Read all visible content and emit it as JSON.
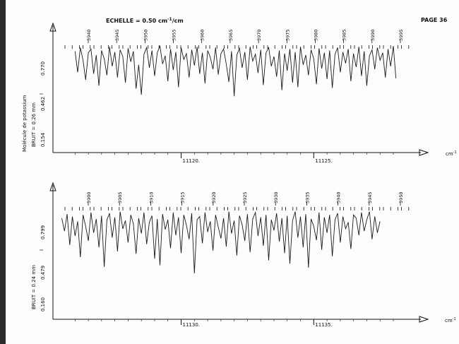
{
  "page_label": "PAGE 36",
  "scale_label": "ECHELLE = 0.50 cm",
  "scale_sup": "-1",
  "scale_unit": "/cm",
  "molecule_label": "Molécule de potassium",
  "intensity_symbol": "I",
  "unit_label_top": "cm",
  "unit_sup_top": "-1",
  "unit_label_bottom": "cm",
  "unit_sup_bottom": "-1",
  "chart_data": [
    {
      "type": "line",
      "title": "",
      "noise_label": "BRUIT = 0.26 mm",
      "y_ticks": [
        "0.770",
        "0.462",
        "0.154"
      ],
      "x_ticks": [
        "11120.",
        "11125."
      ],
      "line_numbers": [
        "3940",
        "3945",
        "3950",
        "3955",
        "3960",
        "3965",
        "3970",
        "3975",
        "3980",
        "3985",
        "3990",
        "3995"
      ],
      "xlim": [
        11115.3,
        11128.4
      ],
      "ylim": [
        0,
        1
      ],
      "series": [
        {
          "x": [
            11116.0,
            11116.1,
            11116.2,
            11116.3,
            11116.4,
            11116.5,
            11116.6,
            11116.7,
            11116.8,
            11116.9,
            11117.0,
            11117.1,
            11117.2,
            11117.3,
            11117.4,
            11117.5,
            11117.6,
            11117.7,
            11117.8,
            11117.9,
            11118.0,
            11118.1,
            11118.2,
            11118.3,
            11118.4,
            11118.5,
            11118.6,
            11118.7,
            11118.8,
            11118.9,
            11119.0,
            11119.1,
            11119.2,
            11119.3,
            11119.4,
            11119.5,
            11119.6,
            11119.7,
            11119.8,
            11119.9,
            11120.0,
            11120.1,
            11120.2,
            11120.3,
            11120.4,
            11120.5,
            11120.6,
            11120.7,
            11120.8,
            11120.9,
            11121.0,
            11121.1,
            11121.2,
            11121.3,
            11121.4,
            11121.5,
            11121.6,
            11121.7,
            11121.8,
            11121.9,
            11122.0,
            11122.1,
            11122.2,
            11122.3,
            11122.4,
            11122.5,
            11122.6,
            11122.7,
            11122.8,
            11122.9,
            11123.0,
            11123.1,
            11123.2,
            11123.3,
            11123.4,
            11123.5,
            11123.6,
            11123.7,
            11123.8,
            11123.9,
            11124.0,
            11124.1,
            11124.2,
            11124.3,
            11124.4,
            11124.5,
            11124.6,
            11124.7,
            11124.8,
            11124.9,
            11125.0,
            11125.1,
            11125.2,
            11125.3,
            11125.4,
            11125.5,
            11125.6,
            11125.7,
            11125.8,
            11125.9,
            11126.0,
            11126.1,
            11126.2,
            11126.3,
            11126.4,
            11126.5,
            11126.6,
            11126.7,
            11126.8,
            11126.9,
            11127.0,
            11127.1,
            11127.2,
            11127.3,
            11127.4,
            11127.5,
            11127.6,
            11127.7,
            11127.8,
            11127.9,
            11128.0,
            11128.1
          ],
          "y": [
            0.9,
            0.62,
            0.95,
            0.78,
            0.52,
            0.88,
            0.93,
            0.6,
            0.85,
            0.44,
            0.91,
            0.8,
            0.58,
            0.96,
            0.7,
            0.89,
            0.55,
            0.92,
            0.83,
            0.48,
            0.94,
            0.76,
            0.9,
            0.4,
            0.72,
            0.32,
            0.86,
            0.95,
            0.68,
            0.91,
            0.57,
            0.88,
            0.97,
            0.73,
            0.84,
            0.5,
            0.93,
            0.65,
            0.89,
            0.42,
            0.95,
            0.79,
            0.87,
            0.55,
            0.92,
            0.71,
            0.96,
            0.6,
            0.88,
            0.47,
            0.91,
            0.82,
            0.66,
            0.95,
            0.59,
            0.87,
            0.93,
            0.73,
            0.49,
            0.9,
            0.3,
            0.85,
            0.94,
            0.68,
            0.89,
            0.52,
            0.96,
            0.77,
            0.86,
            0.61,
            0.92,
            0.45,
            0.88,
            0.95,
            0.7,
            0.83,
            0.56,
            0.91,
            0.38,
            0.87,
            0.64,
            0.93,
            0.48,
            0.89,
            0.42,
            0.96,
            0.72,
            0.85,
            0.58,
            0.92,
            0.8,
            0.46,
            0.94,
            0.67,
            0.88,
            0.53,
            0.91,
            0.41,
            0.86,
            0.95,
            0.62,
            0.89,
            0.74,
            0.93,
            0.5,
            0.87,
            0.69,
            0.96,
            0.57,
            0.9,
            0.44,
            0.84,
            0.92,
            0.66,
            0.95,
            0.78,
            0.88,
            0.55,
            0.93,
            0.7,
            0.97,
            0.54
          ]
        }
      ]
    },
    {
      "type": "line",
      "title": "",
      "noise_label": "BRUIT = 0.24 mm",
      "y_ticks": [
        "0.799",
        "0.479",
        "0.160"
      ],
      "x_ticks": [
        "11130.",
        "11135."
      ],
      "line_numbers": [
        "3900",
        "3905",
        "3910",
        "3915",
        "3920",
        "3925",
        "3930",
        "3935",
        "3940",
        "3945",
        "3950"
      ],
      "xlim": [
        11125.3,
        11138.4
      ],
      "ylim": [
        0,
        1
      ],
      "series": [
        {
          "x": [
            11125.5,
            11125.6,
            11125.7,
            11125.8,
            11125.9,
            11126.0,
            11126.1,
            11126.2,
            11126.3,
            11126.4,
            11126.5,
            11126.6,
            11126.7,
            11126.8,
            11126.9,
            11127.0,
            11127.1,
            11127.2,
            11127.3,
            11127.4,
            11127.5,
            11127.6,
            11127.7,
            11127.8,
            11127.9,
            11128.0,
            11128.1,
            11128.2,
            11128.3,
            11128.4,
            11128.5,
            11128.6,
            11128.7,
            11128.8,
            11128.9,
            11129.0,
            11129.1,
            11129.2,
            11129.3,
            11129.4,
            11129.5,
            11129.6,
            11129.7,
            11129.8,
            11129.9,
            11130.0,
            11130.1,
            11130.2,
            11130.3,
            11130.4,
            11130.5,
            11130.6,
            11130.7,
            11130.8,
            11130.9,
            11131.0,
            11131.1,
            11131.2,
            11131.3,
            11131.4,
            11131.5,
            11131.6,
            11131.7,
            11131.8,
            11131.9,
            11132.0,
            11132.1,
            11132.2,
            11132.3,
            11132.4,
            11132.5,
            11132.6,
            11132.7,
            11132.8,
            11132.9,
            11133.0,
            11133.1,
            11133.2,
            11133.3,
            11133.4,
            11133.5,
            11133.6,
            11133.7,
            11133.8,
            11133.9,
            11134.0,
            11134.1,
            11134.2,
            11134.3,
            11134.4,
            11134.5,
            11134.6,
            11134.7,
            11134.8,
            11134.9,
            11135.0,
            11135.1,
            11135.2,
            11135.3,
            11135.4,
            11135.5,
            11135.6,
            11135.7,
            11135.8,
            11135.9,
            11136.0,
            11136.1,
            11136.2,
            11136.3,
            11136.4,
            11136.5,
            11136.6,
            11136.7,
            11136.8,
            11136.9,
            11137.0,
            11137.1,
            11137.2,
            11137.3,
            11137.4,
            11137.5
          ],
          "y": [
            0.88,
            0.72,
            0.93,
            0.55,
            0.9,
            0.66,
            0.84,
            0.4,
            0.92,
            0.78,
            0.6,
            0.95,
            0.7,
            0.87,
            0.52,
            0.91,
            0.28,
            0.86,
            0.94,
            0.64,
            0.89,
            0.47,
            0.96,
            0.75,
            0.85,
            0.58,
            0.92,
            0.81,
            0.44,
            0.88,
            0.69,
            0.95,
            0.56,
            0.83,
            0.91,
            0.38,
            0.87,
            0.3,
            0.93,
            0.74,
            0.86,
            0.51,
            0.95,
            0.67,
            0.89,
            0.45,
            0.92,
            0.79,
            0.62,
            0.94,
            0.2,
            0.86,
            0.9,
            0.57,
            0.95,
            0.71,
            0.84,
            0.48,
            0.92,
            0.77,
            0.63,
            0.88,
            0.53,
            0.96,
            0.69,
            0.85,
            0.42,
            0.91,
            0.8,
            0.6,
            0.93,
            0.46,
            0.87,
            0.95,
            0.66,
            0.89,
            0.54,
            0.92,
            0.36,
            0.86,
            0.73,
            0.94,
            0.59,
            0.88,
            0.45,
            0.91,
            0.32,
            0.85,
            0.96,
            0.64,
            0.9,
            0.52,
            0.93,
            0.27,
            0.87,
            0.78,
            0.61,
            0.95,
            0.49,
            0.89,
            0.7,
            0.92,
            0.41,
            0.86,
            0.94,
            0.58,
            0.9,
            0.75,
            0.83,
            0.5,
            0.92,
            0.88,
            0.67,
            0.95,
            0.72,
            0.86,
            0.96,
            0.62,
            0.9,
            0.7,
            0.84
          ]
        }
      ]
    }
  ]
}
